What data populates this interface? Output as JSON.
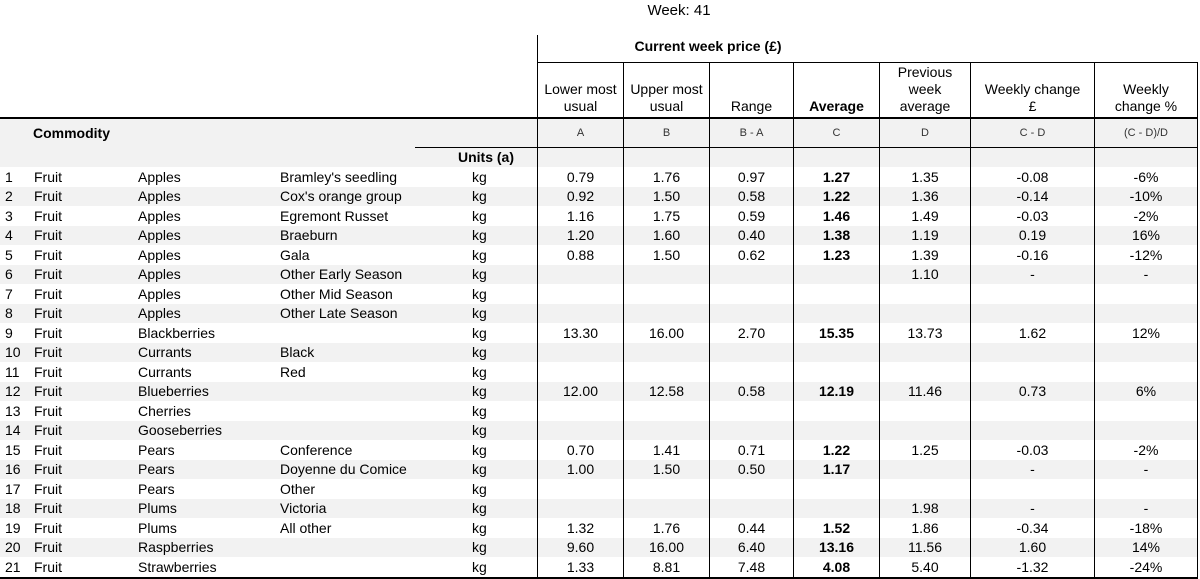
{
  "meta": {
    "week_title": "Week:  41"
  },
  "header": {
    "group_title": "Current week price (£)",
    "commodity_label": "Commodity",
    "units_label": "Units (a)",
    "columns": [
      "Lower most\nusual",
      "Upper most\nusual",
      "Range",
      "Average",
      "Previous\nweek\naverage",
      "Weekly change\n£",
      "Weekly\nchange %"
    ],
    "formulas": [
      "A",
      "B",
      "B - A",
      "C",
      "D",
      "C - D",
      "(C - D)/D"
    ]
  },
  "rows": [
    {
      "n": "1",
      "cat": "Fruit",
      "group": "Apples",
      "variety": "Bramley's seedling",
      "unit": "kg",
      "a": "0.79",
      "b": "1.76",
      "range": "0.97",
      "avg": "1.27",
      "prev": "1.35",
      "chg": "-0.08",
      "pct": "-6%"
    },
    {
      "n": "2",
      "cat": "Fruit",
      "group": "Apples",
      "variety": "Cox's orange group",
      "unit": "kg",
      "a": "0.92",
      "b": "1.50",
      "range": "0.58",
      "avg": "1.22",
      "prev": "1.36",
      "chg": "-0.14",
      "pct": "-10%"
    },
    {
      "n": "3",
      "cat": "Fruit",
      "group": "Apples",
      "variety": "Egremont Russet",
      "unit": "kg",
      "a": "1.16",
      "b": "1.75",
      "range": "0.59",
      "avg": "1.46",
      "prev": "1.49",
      "chg": "-0.03",
      "pct": "-2%"
    },
    {
      "n": "4",
      "cat": "Fruit",
      "group": "Apples",
      "variety": "Braeburn",
      "unit": "kg",
      "a": "1.20",
      "b": "1.60",
      "range": "0.40",
      "avg": "1.38",
      "prev": "1.19",
      "chg": "0.19",
      "pct": "16%"
    },
    {
      "n": "5",
      "cat": "Fruit",
      "group": "Apples",
      "variety": "Gala",
      "unit": "kg",
      "a": "0.88",
      "b": "1.50",
      "range": "0.62",
      "avg": "1.23",
      "prev": "1.39",
      "chg": "-0.16",
      "pct": "-12%"
    },
    {
      "n": "6",
      "cat": "Fruit",
      "group": "Apples",
      "variety": "Other Early Season",
      "unit": "kg",
      "a": "",
      "b": "",
      "range": "",
      "avg": "",
      "prev": "1.10",
      "chg": "-",
      "pct": "-"
    },
    {
      "n": "7",
      "cat": "Fruit",
      "group": "Apples",
      "variety": "Other Mid Season",
      "unit": "kg",
      "a": "",
      "b": "",
      "range": "",
      "avg": "",
      "prev": "",
      "chg": "",
      "pct": ""
    },
    {
      "n": "8",
      "cat": "Fruit",
      "group": "Apples",
      "variety": "Other Late Season",
      "unit": "kg",
      "a": "",
      "b": "",
      "range": "",
      "avg": "",
      "prev": "",
      "chg": "",
      "pct": ""
    },
    {
      "n": "9",
      "cat": "Fruit",
      "group": "Blackberries",
      "variety": "",
      "unit": "kg",
      "a": "13.30",
      "b": "16.00",
      "range": "2.70",
      "avg": "15.35",
      "prev": "13.73",
      "chg": "1.62",
      "pct": "12%"
    },
    {
      "n": "10",
      "cat": "Fruit",
      "group": "Currants",
      "variety": "Black",
      "unit": "kg",
      "a": "",
      "b": "",
      "range": "",
      "avg": "",
      "prev": "",
      "chg": "",
      "pct": ""
    },
    {
      "n": "11",
      "cat": "Fruit",
      "group": "Currants",
      "variety": "Red",
      "unit": "kg",
      "a": "",
      "b": "",
      "range": "",
      "avg": "",
      "prev": "",
      "chg": "",
      "pct": ""
    },
    {
      "n": "12",
      "cat": "Fruit",
      "group": "Blueberries",
      "variety": "",
      "unit": "kg",
      "a": "12.00",
      "b": "12.58",
      "range": "0.58",
      "avg": "12.19",
      "prev": "11.46",
      "chg": "0.73",
      "pct": "6%"
    },
    {
      "n": "13",
      "cat": "Fruit",
      "group": "Cherries",
      "variety": "",
      "unit": "kg",
      "a": "",
      "b": "",
      "range": "",
      "avg": "",
      "prev": "",
      "chg": "",
      "pct": ""
    },
    {
      "n": "14",
      "cat": "Fruit",
      "group": "Gooseberries",
      "variety": "",
      "unit": "kg",
      "a": "",
      "b": "",
      "range": "",
      "avg": "",
      "prev": "",
      "chg": "",
      "pct": ""
    },
    {
      "n": "15",
      "cat": "Fruit",
      "group": "Pears",
      "variety": "Conference",
      "unit": "kg",
      "a": "0.70",
      "b": "1.41",
      "range": "0.71",
      "avg": "1.22",
      "prev": "1.25",
      "chg": "-0.03",
      "pct": "-2%"
    },
    {
      "n": "16",
      "cat": "Fruit",
      "group": "Pears",
      "variety": "Doyenne du Comice",
      "unit": "kg",
      "a": "1.00",
      "b": "1.50",
      "range": "0.50",
      "avg": "1.17",
      "prev": "",
      "chg": "-",
      "pct": "-"
    },
    {
      "n": "17",
      "cat": "Fruit",
      "group": "Pears",
      "variety": "Other",
      "unit": "kg",
      "a": "",
      "b": "",
      "range": "",
      "avg": "",
      "prev": "",
      "chg": "",
      "pct": ""
    },
    {
      "n": "18",
      "cat": "Fruit",
      "group": "Plums",
      "variety": "Victoria",
      "unit": "kg",
      "a": "",
      "b": "",
      "range": "",
      "avg": "",
      "prev": "1.98",
      "chg": "-",
      "pct": "-"
    },
    {
      "n": "19",
      "cat": "Fruit",
      "group": "Plums",
      "variety": "All other",
      "unit": "kg",
      "a": "1.32",
      "b": "1.76",
      "range": "0.44",
      "avg": "1.52",
      "prev": "1.86",
      "chg": "-0.34",
      "pct": "-18%"
    },
    {
      "n": "20",
      "cat": "Fruit",
      "group": "Raspberries",
      "variety": "",
      "unit": "kg",
      "a": "9.60",
      "b": "16.00",
      "range": "6.40",
      "avg": "13.16",
      "prev": "11.56",
      "chg": "1.60",
      "pct": "14%"
    },
    {
      "n": "21",
      "cat": "Fruit",
      "group": "Strawberries",
      "variety": "",
      "unit": "kg",
      "a": "1.33",
      "b": "8.81",
      "range": "7.48",
      "avg": "4.08",
      "prev": "5.40",
      "chg": "-1.32",
      "pct": "-24%"
    }
  ],
  "colors": {
    "stripe": "#f2f2f2",
    "border": "#000000",
    "formula_text": "#333333"
  }
}
